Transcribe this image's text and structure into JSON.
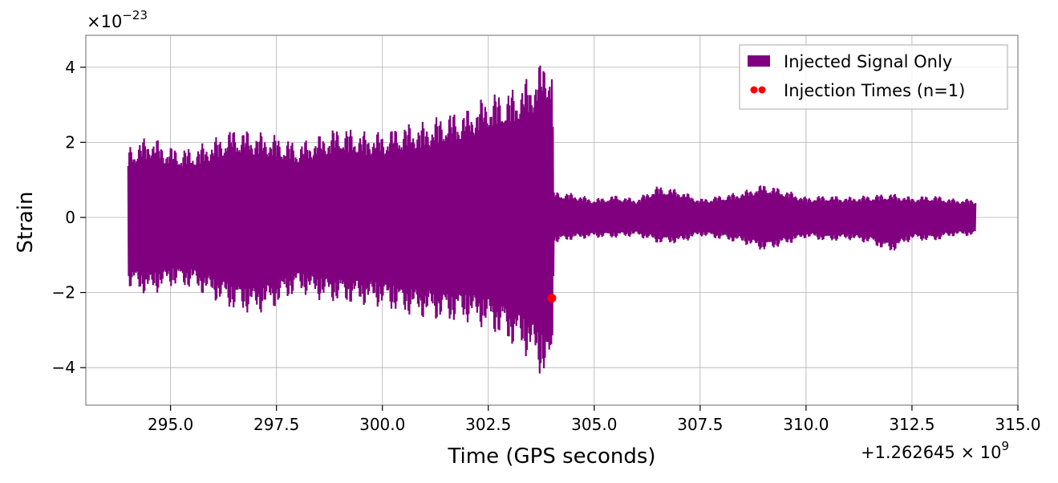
{
  "chart_data": {
    "type": "line",
    "title": "",
    "xlabel": "Time (GPS seconds)",
    "ylabel": "Strain",
    "x_offset_label": "+1.262645 × 10",
    "x_offset_exponent": "9",
    "y_multiplier_label": "×10",
    "y_multiplier_exponent": "−23",
    "xlim": [
      293.0,
      315.0
    ],
    "ylim": [
      -5.0,
      4.85
    ],
    "xticks": [
      295.0,
      297.5,
      300.0,
      302.5,
      305.0,
      307.5,
      310.0,
      312.5,
      315.0
    ],
    "xtick_labels": [
      "295.0",
      "297.5",
      "300.0",
      "302.5",
      "305.0",
      "307.5",
      "310.0",
      "312.5",
      "315.0"
    ],
    "yticks": [
      -4,
      -2,
      0,
      2,
      4
    ],
    "ytick_labels": [
      "−4",
      "−2",
      "0",
      "2",
      "4"
    ],
    "grid": true,
    "legend_position": "top-right",
    "series": [
      {
        "name": "Injected Signal Only",
        "type": "area",
        "color": "#800080",
        "envelope_x": [
          294.0,
          294.5,
          295.0,
          295.5,
          296.0,
          296.5,
          297.0,
          297.5,
          298.0,
          298.5,
          299.0,
          299.5,
          300.0,
          300.5,
          301.0,
          301.5,
          302.0,
          302.5,
          303.0,
          303.5,
          303.9,
          304.0,
          304.05,
          304.5,
          305.0,
          305.5,
          306.0,
          306.5,
          307.0,
          307.5,
          308.0,
          308.5,
          309.0,
          309.5,
          310.0,
          310.5,
          311.0,
          311.5,
          312.0,
          312.5,
          313.0,
          313.5,
          314.0
        ],
        "envelope_upper": [
          1.9,
          2.2,
          1.9,
          1.85,
          2.1,
          2.4,
          2.3,
          2.2,
          2.0,
          2.2,
          2.45,
          2.3,
          2.3,
          2.5,
          2.55,
          2.8,
          2.9,
          3.3,
          3.4,
          3.8,
          4.4,
          4.3,
          0.7,
          0.65,
          0.5,
          0.6,
          0.5,
          0.85,
          0.75,
          0.5,
          0.6,
          0.7,
          0.9,
          0.75,
          0.55,
          0.6,
          0.55,
          0.6,
          0.65,
          0.55,
          0.6,
          0.5,
          0.5
        ],
        "envelope_lower": [
          -1.9,
          -2.1,
          -1.85,
          -1.9,
          -2.2,
          -2.5,
          -2.6,
          -2.4,
          -2.0,
          -2.2,
          -2.3,
          -2.35,
          -2.4,
          -2.6,
          -2.7,
          -2.8,
          -2.8,
          -3.0,
          -3.4,
          -3.8,
          -4.5,
          -4.3,
          -0.7,
          -0.6,
          -0.55,
          -0.55,
          -0.5,
          -0.7,
          -0.7,
          -0.5,
          -0.6,
          -0.7,
          -0.9,
          -0.75,
          -0.55,
          -0.65,
          -0.6,
          -0.7,
          -0.95,
          -0.6,
          -0.65,
          -0.5,
          -0.5
        ]
      },
      {
        "name": "Injection Times (n=1)",
        "type": "scatter",
        "color": "#ff0000",
        "x": [
          304.0
        ],
        "y": [
          -2.15
        ]
      }
    ]
  }
}
